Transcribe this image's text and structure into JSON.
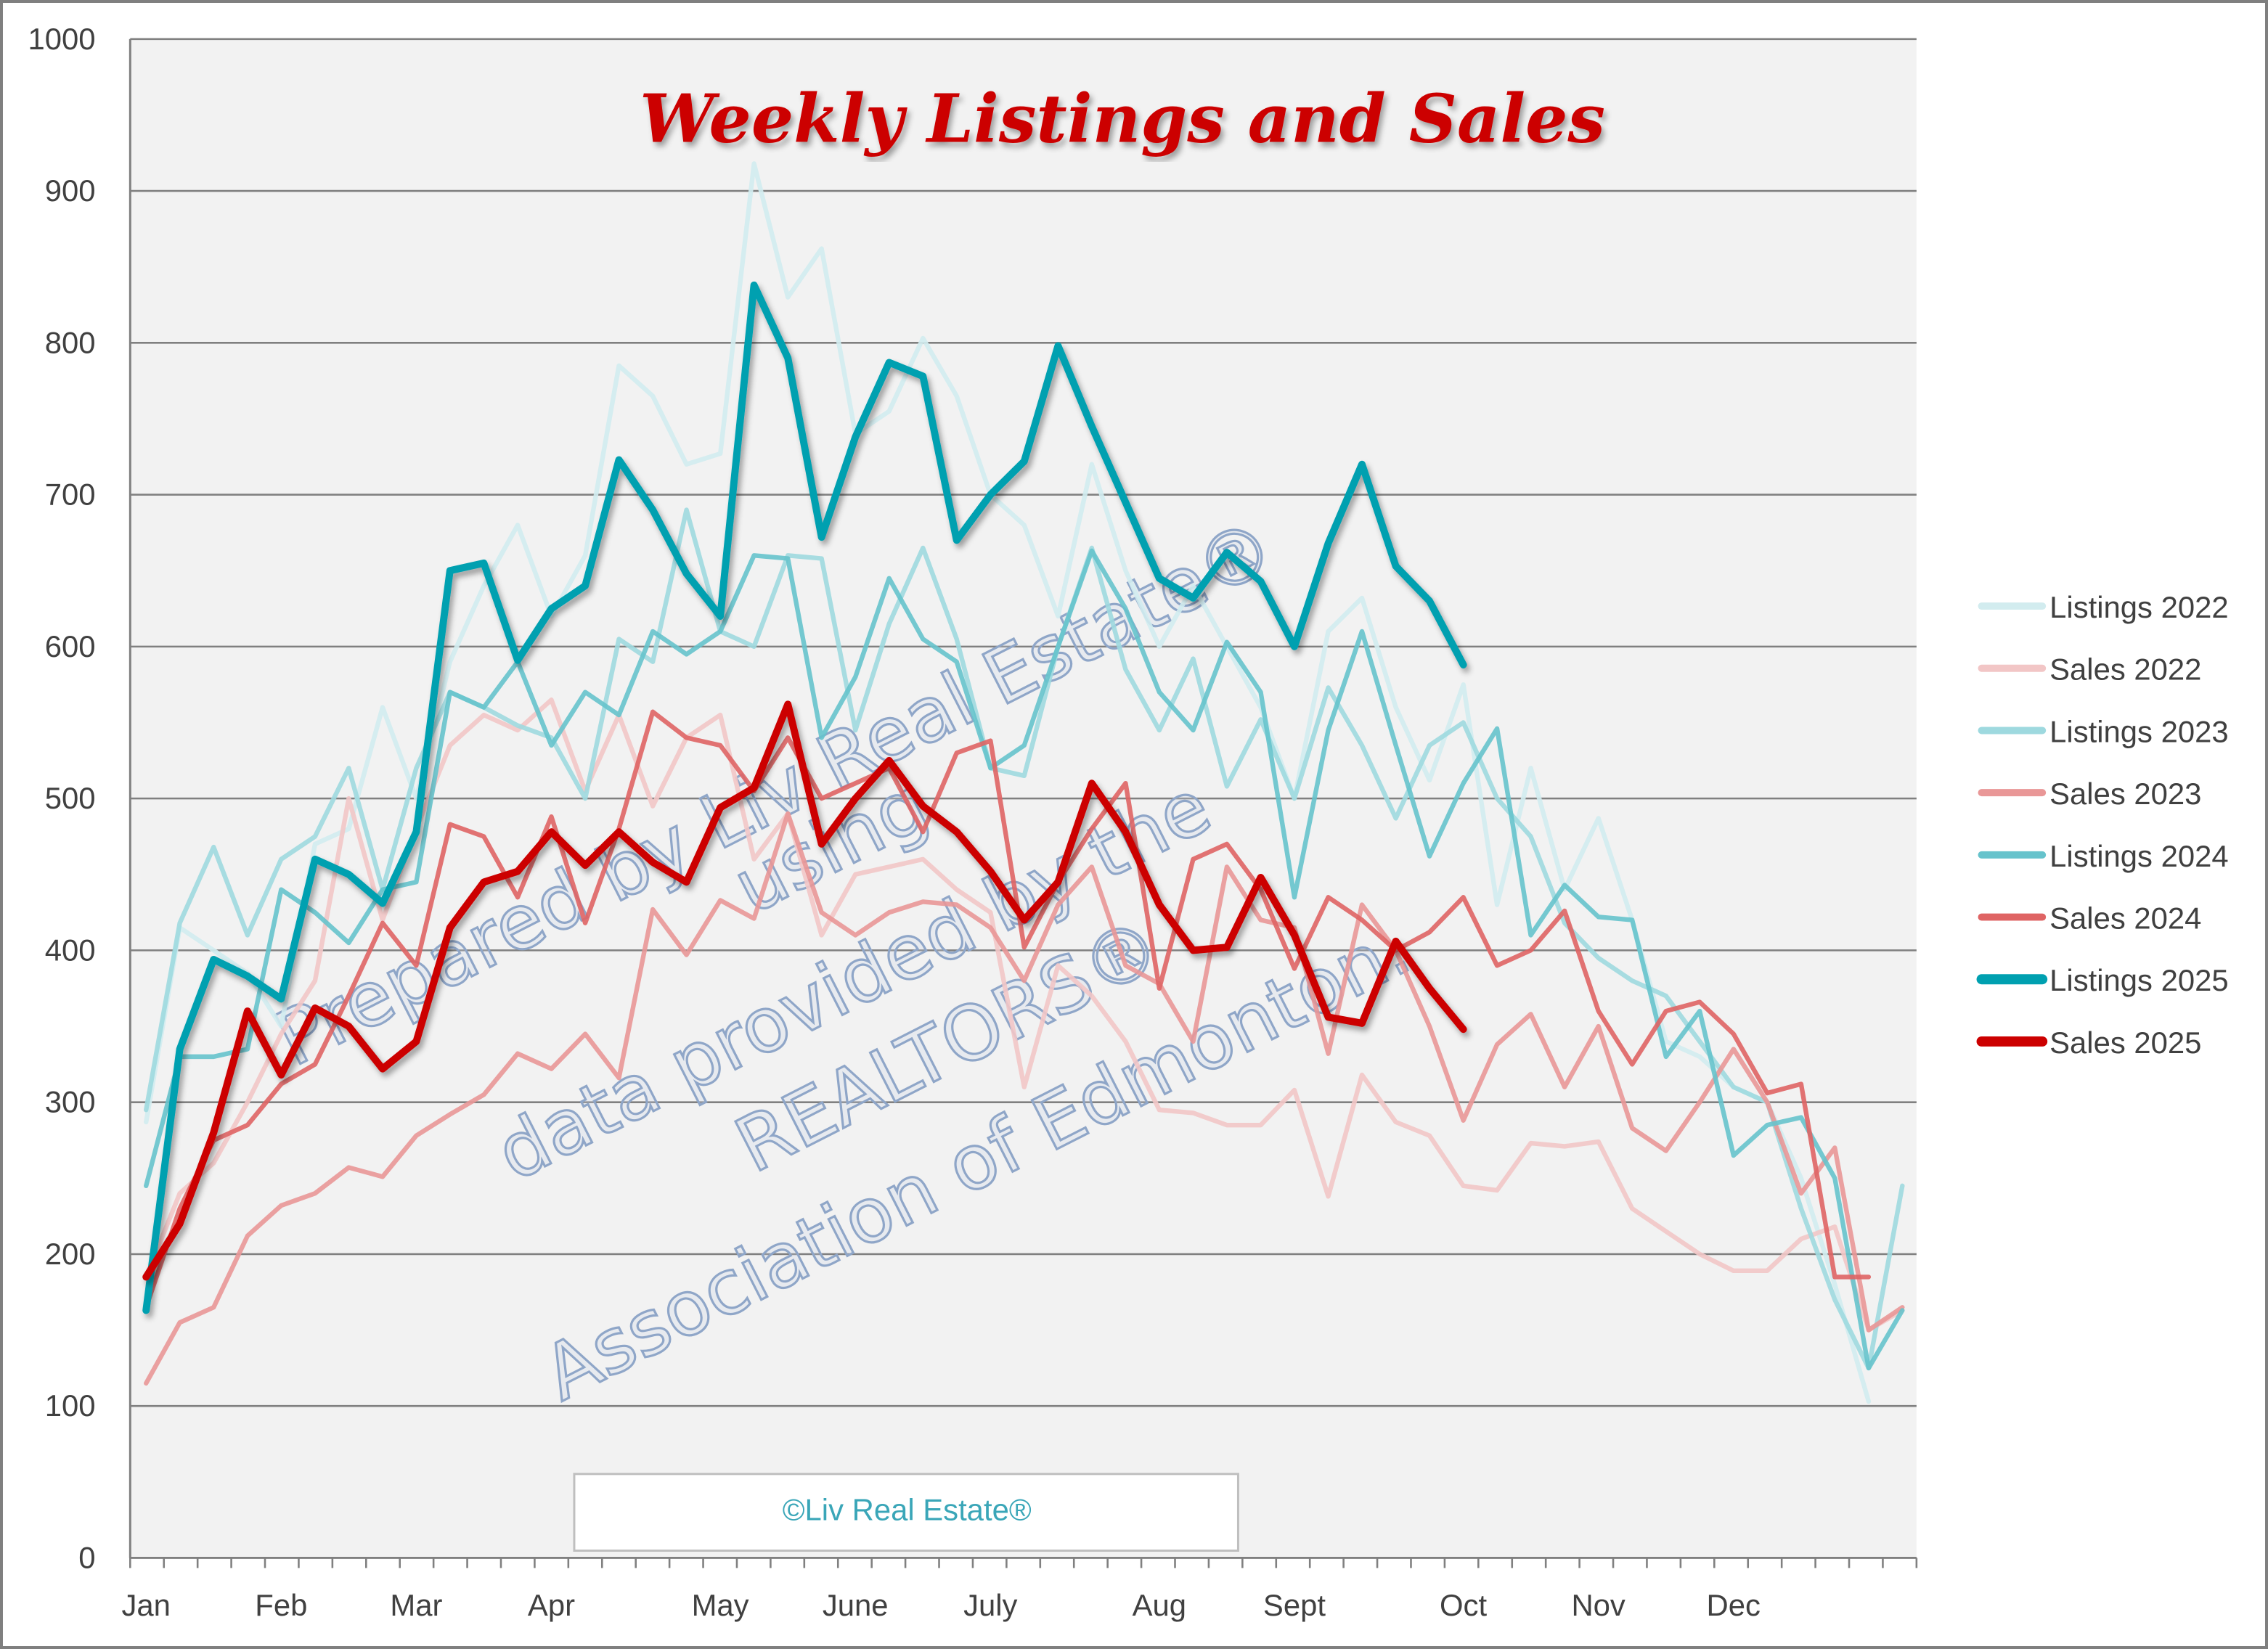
{
  "chart_data": {
    "type": "line",
    "title": "Weekly Listings and Sales",
    "xlabel": "",
    "ylabel": "",
    "ylim": [
      0,
      1000
    ],
    "yticks": [
      0,
      100,
      200,
      300,
      400,
      500,
      600,
      700,
      800,
      900,
      1000
    ],
    "grid": true,
    "legend_placement": "right",
    "x_tick_labels": [
      {
        "label": "Jan",
        "week": 0
      },
      {
        "label": "Feb",
        "week": 4
      },
      {
        "label": "Mar",
        "week": 8
      },
      {
        "label": "Apr",
        "week": 12
      },
      {
        "label": "May",
        "week": 17
      },
      {
        "label": "June",
        "week": 21
      },
      {
        "label": "July",
        "week": 25
      },
      {
        "label": "Aug",
        "week": 30
      },
      {
        "label": "Sept",
        "week": 34
      },
      {
        "label": "Oct",
        "week": 39
      },
      {
        "label": "Nov",
        "week": 43
      },
      {
        "label": "Dec",
        "week": 47
      }
    ],
    "series": [
      {
        "name": "Listings 2022",
        "color": "#d2ecef",
        "values": [
          287,
          415,
          400,
          385,
          350,
          470,
          480,
          560,
          500,
          590,
          640,
          680,
          620,
          660,
          785,
          765,
          720,
          727,
          918,
          830,
          862,
          740,
          755,
          803,
          765,
          700,
          680,
          620,
          720,
          650,
          600,
          640,
          600,
          560,
          500,
          610,
          632,
          560,
          512,
          575,
          430,
          520,
          440,
          487,
          420,
          340,
          330,
          310,
          300,
          250,
          180,
          103
        ]
      },
      {
        "name": "Sales 2022",
        "color": "#f2c6c6",
        "values": [
          185,
          240,
          260,
          300,
          345,
          380,
          500,
          420,
          480,
          535,
          555,
          545,
          565,
          505,
          555,
          495,
          540,
          555,
          460,
          490,
          410,
          450,
          455,
          460,
          440,
          425,
          310,
          390,
          370,
          340,
          295,
          293,
          285,
          285,
          308,
          238,
          318,
          287,
          278,
          245,
          242,
          273,
          271,
          274,
          230,
          215,
          200,
          189,
          189,
          210,
          218,
          150,
          163
        ]
      },
      {
        "name": "Listings 2023",
        "color": "#9ed9df",
        "values": [
          295,
          418,
          468,
          410,
          460,
          475,
          520,
          440,
          520,
          570,
          560,
          548,
          540,
          500,
          605,
          590,
          690,
          610,
          600,
          660,
          658,
          545,
          615,
          665,
          605,
          520,
          515,
          600,
          665,
          585,
          545,
          592,
          508,
          552,
          500,
          573,
          535,
          487,
          535,
          550,
          500,
          475,
          418,
          395,
          380,
          370,
          340,
          310,
          300,
          230,
          170,
          125,
          245
        ]
      },
      {
        "name": "Sales 2023",
        "color": "#e99797",
        "values": [
          115,
          155,
          165,
          212,
          232,
          240,
          257,
          251,
          278,
          292,
          305,
          332,
          322,
          345,
          316,
          427,
          397,
          433,
          421,
          490,
          425,
          410,
          425,
          432,
          430,
          415,
          380,
          430,
          455,
          390,
          378,
          340,
          455,
          420,
          415,
          332,
          430,
          400,
          350,
          288,
          338,
          358,
          310,
          350,
          283,
          268,
          300,
          335,
          300,
          240,
          270,
          150,
          165
        ]
      },
      {
        "name": "Listings 2024",
        "color": "#66c3cc",
        "values": [
          245,
          330,
          330,
          335,
          440,
          425,
          405,
          440,
          445,
          570,
          560,
          590,
          535,
          570,
          555,
          610,
          595,
          610,
          660,
          658,
          540,
          580,
          645,
          605,
          590,
          520,
          535,
          600,
          663,
          625,
          570,
          545,
          603,
          570,
          435,
          545,
          610,
          535,
          462,
          510,
          546,
          410,
          443,
          422,
          420,
          330,
          360,
          265,
          285,
          290,
          250,
          125,
          163
        ]
      },
      {
        "name": "Sales 2024",
        "color": "#df6464",
        "values": [
          165,
          230,
          275,
          285,
          312,
          325,
          370,
          418,
          390,
          483,
          475,
          435,
          488,
          418,
          480,
          557,
          540,
          535,
          505,
          540,
          500,
          510,
          520,
          478,
          530,
          538,
          402,
          445,
          480,
          510,
          375,
          460,
          470,
          440,
          388,
          435,
          420,
          400,
          412,
          435,
          390,
          400,
          426,
          360,
          325,
          360,
          366,
          345,
          306,
          312,
          185,
          185
        ]
      },
      {
        "name": "Listings 2025",
        "color": "#00a0b0",
        "values": [
          163,
          335,
          394,
          383,
          368,
          460,
          450,
          431,
          478,
          650,
          655,
          591,
          625,
          640,
          723,
          690,
          648,
          620,
          838,
          790,
          672,
          738,
          787,
          778,
          670,
          700,
          722,
          798,
          745,
          695,
          645,
          632,
          662,
          643,
          600,
          668,
          720,
          653,
          630,
          588
        ]
      },
      {
        "name": "Sales 2025",
        "color": "#cc0000",
        "values": [
          185,
          220,
          280,
          360,
          318,
          362,
          350,
          322,
          340,
          415,
          445,
          452,
          478,
          456,
          478,
          458,
          445,
          494,
          507,
          562,
          470,
          500,
          525,
          495,
          478,
          452,
          420,
          445,
          510,
          478,
          430,
          400,
          402,
          448,
          410,
          356,
          352,
          406,
          375,
          348
        ]
      }
    ]
  },
  "watermark": {
    "lines": [
      "Prepared by Liv Real Estate®",
      "using",
      "data provided by the",
      "REALTORS®",
      "Association of Edmonton."
    ]
  },
  "copyright": "©Liv Real Estate®"
}
